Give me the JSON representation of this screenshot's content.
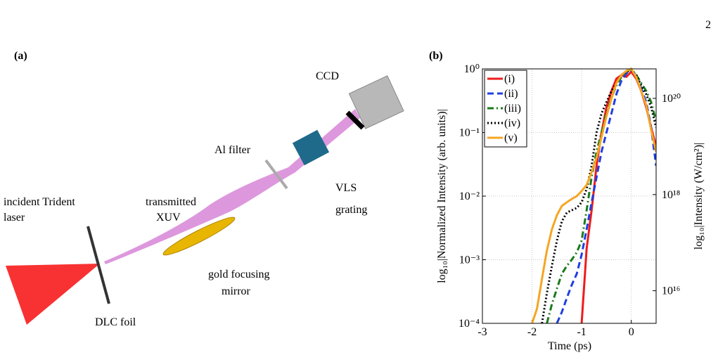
{
  "page_number": "2",
  "panel_a": {
    "label": "(a)",
    "labels": {
      "laser": [
        "incident Trident",
        "laser"
      ],
      "xuv": [
        "transmitted",
        "XUV"
      ],
      "filter": "Al filter",
      "ccd": "CCD",
      "grating": [
        "VLS",
        "grating"
      ],
      "mirror": [
        "gold focusing",
        "mirror"
      ],
      "foil": "DLC foil"
    }
  },
  "chart_data": {
    "type": "line",
    "panel_label": "(b)",
    "x_label": "Time (ps)",
    "y_label": "log₁₀|Normalized Intensity (arb. units)|",
    "y2_label": "log₁₀|Intensity (W/cm²)|",
    "x": [
      -2.1,
      -2.0,
      -1.9,
      -1.8,
      -1.7,
      -1.6,
      -1.5,
      -1.4,
      -1.3,
      -1.2,
      -1.1,
      -1.0,
      -0.9,
      -0.8,
      -0.7,
      -0.6,
      -0.5,
      -0.4,
      -0.3,
      -0.2,
      -0.1,
      0,
      0.1,
      0.2,
      0.3,
      0.4,
      0.5
    ],
    "xlim": [
      -3,
      0.5
    ],
    "xticks": [
      -3,
      -2,
      -1,
      0
    ],
    "y_log": true,
    "ylim": [
      0.0001,
      1
    ],
    "yticks": [
      {
        "value": 0.0001,
        "label": "10⁻⁴"
      },
      {
        "value": 0.001,
        "label": "10⁻³"
      },
      {
        "value": 0.01,
        "label": "10⁻²"
      },
      {
        "value": 0.1,
        "label": "10⁻¹"
      },
      {
        "value": 1,
        "label": "10⁰"
      }
    ],
    "y2lim": [
      2100000000000000.0,
      4.1e+20
    ],
    "y2ticks": [
      {
        "value": 1e+16,
        "label": "10¹⁶"
      },
      {
        "value": 1e+18,
        "label": "10¹⁸"
      },
      {
        "value": 1e+20,
        "label": "10²⁰"
      }
    ],
    "grid": true,
    "legend": "upper left",
    "series": [
      {
        "name": "(i)",
        "color": "#ee1c1c",
        "dash": "solid",
        "values": [
          null,
          null,
          null,
          null,
          null,
          null,
          null,
          null,
          null,
          null,
          null,
          0.0001,
          0.0015,
          0.006,
          0.03,
          0.1,
          0.25,
          0.45,
          0.7,
          0.8,
          0.75,
          0.9,
          0.7,
          0.45,
          0.25,
          0.12,
          0.06
        ]
      },
      {
        "name": "(ii)",
        "color": "#1f3fe0",
        "dash": "dashed",
        "values": [
          null,
          null,
          null,
          null,
          null,
          null,
          0.0001,
          0.00015,
          0.00025,
          0.0004,
          0.0006,
          0.0012,
          0.003,
          0.008,
          0.02,
          0.05,
          0.1,
          0.2,
          0.4,
          0.65,
          0.85,
          0.95,
          0.8,
          0.5,
          0.3,
          0.12,
          0.03
        ]
      },
      {
        "name": "(iii)",
        "color": "#1a7a1a",
        "dash": "dashdot",
        "values": [
          null,
          null,
          null,
          null,
          0.0001,
          0.0002,
          0.00035,
          0.0006,
          0.0008,
          0.001,
          0.0013,
          0.002,
          0.006,
          0.02,
          0.05,
          0.1,
          0.2,
          0.35,
          0.55,
          0.75,
          0.9,
          1.0,
          0.8,
          0.6,
          0.45,
          0.3,
          0.15
        ]
      },
      {
        "name": "(iv)",
        "color": "#000000",
        "dash": "dotted",
        "values": [
          null,
          null,
          null,
          0.0001,
          0.0003,
          0.0008,
          0.002,
          0.004,
          0.0055,
          0.006,
          0.0065,
          0.008,
          0.013,
          0.03,
          0.1,
          0.2,
          0.3,
          0.45,
          0.6,
          0.8,
          0.9,
          0.95,
          0.8,
          0.55,
          0.4,
          0.25,
          0.12
        ]
      },
      {
        "name": "(v)",
        "color": "#f5a623",
        "dash": "solid",
        "values": [
          null,
          0.0001,
          0.00017,
          0.0005,
          0.0014,
          0.003,
          0.005,
          0.007,
          0.008,
          0.009,
          0.01,
          0.012,
          0.015,
          0.024,
          0.04,
          0.085,
          0.18,
          0.34,
          0.6,
          0.8,
          0.93,
          1.0,
          0.74,
          0.45,
          0.27,
          0.11,
          0.05
        ]
      }
    ]
  }
}
